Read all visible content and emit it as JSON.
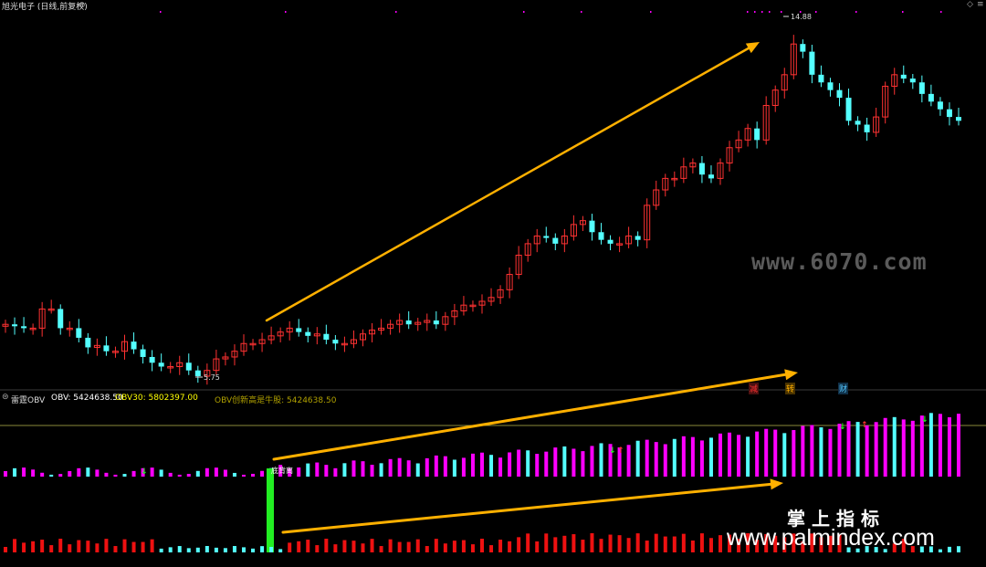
{
  "title": "旭光电子 (日线,前复权)",
  "high_price": "14.88",
  "low_price": "5.75",
  "obv_panel": {
    "indicator_name": "雷霆OBV",
    "obv_label": "OBV: 5424638.50",
    "obv30_label": "OBV30: 5802397.00",
    "new_high_label": "OBV创新高是牛股: 5424638.50",
    "signal_text": "底背离",
    "event_tags": [
      "减",
      "转",
      "财"
    ]
  },
  "watermarks": {
    "site1": "www.6070.com",
    "site2_title": "掌上指标",
    "site2_url": "www.palmindex.com"
  },
  "colors": {
    "up": "#ff3232",
    "down": "#54ffff",
    "magenta": "#ff00ff",
    "arrow": "#ffb000",
    "signal_bar": "#22ee22",
    "obv_yellow": "#ffff00",
    "label_olive": "#b0a000"
  },
  "chart_data": {
    "type": "candlestick",
    "series": [
      {
        "name": "K线",
        "values": [
          7.1,
          7.05,
          7.0,
          7.0,
          7.5,
          7.5,
          7.0,
          7.0,
          6.75,
          6.5,
          6.55,
          6.4,
          6.4,
          6.65,
          6.45,
          6.25,
          6.1,
          6.0,
          6.0,
          6.1,
          5.9,
          5.75,
          5.9,
          6.2,
          6.25,
          6.4,
          6.6,
          6.6,
          6.7,
          6.8,
          6.9,
          7.0,
          6.9,
          6.8,
          6.85,
          6.7,
          6.6,
          6.6,
          6.7,
          6.85,
          6.95,
          7.0,
          7.1,
          7.2,
          7.1,
          7.15,
          7.2,
          7.1,
          7.3,
          7.45,
          7.6,
          7.6,
          7.7,
          7.8,
          8.0,
          8.4,
          8.9,
          9.2,
          9.4,
          9.35,
          9.2,
          9.4,
          9.7,
          9.8,
          9.5,
          9.3,
          9.2,
          9.2,
          9.4,
          9.3,
          10.2,
          10.6,
          10.9,
          10.9,
          11.2,
          11.3,
          11.0,
          10.9,
          11.3,
          11.7,
          11.9,
          12.2,
          11.9,
          12.8,
          13.2,
          13.6,
          14.4,
          14.2,
          13.6,
          13.4,
          13.2,
          13.0,
          12.4,
          12.3,
          12.1,
          12.5,
          13.3,
          13.6,
          13.5,
          13.4,
          13.1,
          12.9,
          12.7,
          12.5,
          12.4
        ]
      },
      {
        "name": "OBV",
        "values": [
          5424638.5
        ]
      },
      {
        "name": "OBV30",
        "values": [
          5802397.0
        ]
      }
    ],
    "annotations": [
      "14.88",
      "5.75",
      "底背离",
      "减",
      "转",
      "财"
    ]
  }
}
